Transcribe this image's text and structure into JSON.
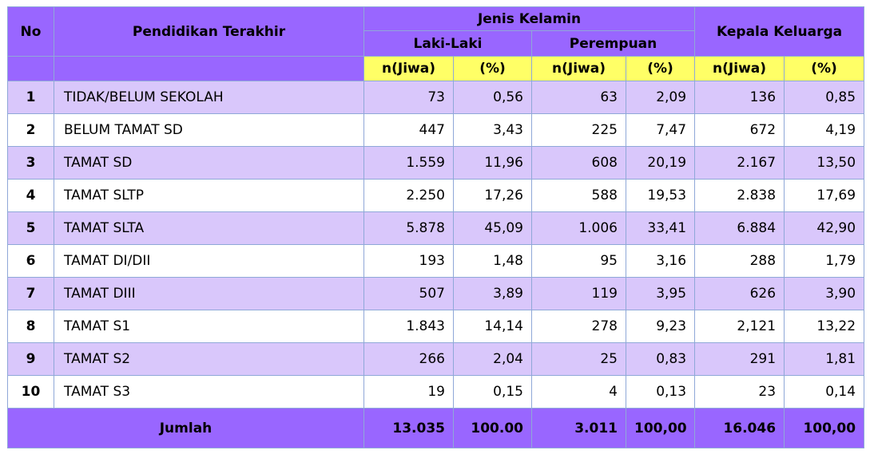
{
  "header": {
    "no": "No",
    "pendidikan": "Pendidikan Terakhir",
    "jenis_kelamin": "Jenis Kelamin",
    "kepala_keluarga": "Kepala Keluarga",
    "laki": "Laki-Laki",
    "perempuan": "Perempuan",
    "n_jiwa": "n(Jiwa)",
    "persen": "(%)"
  },
  "rows": [
    {
      "no": "1",
      "label": "TIDAK/BELUM SEKOLAH",
      "l_n": "73",
      "l_p": "0,56",
      "p_n": "63",
      "p_p": "2,09",
      "k_n": "136",
      "k_p": "0,85"
    },
    {
      "no": "2",
      "label": "BELUM TAMAT SD",
      "l_n": "447",
      "l_p": "3,43",
      "p_n": "225",
      "p_p": "7,47",
      "k_n": "672",
      "k_p": "4,19"
    },
    {
      "no": "3",
      "label": "TAMAT SD",
      "l_n": "1.559",
      "l_p": "11,96",
      "p_n": "608",
      "p_p": "20,19",
      "k_n": "2.167",
      "k_p": "13,50"
    },
    {
      "no": "4",
      "label": "TAMAT SLTP",
      "l_n": "2.250",
      "l_p": "17,26",
      "p_n": "588",
      "p_p": "19,53",
      "k_n": "2.838",
      "k_p": "17,69"
    },
    {
      "no": "5",
      "label": "TAMAT SLTA",
      "l_n": "5.878",
      "l_p": "45,09",
      "p_n": "1.006",
      "p_p": "33,41",
      "k_n": "6.884",
      "k_p": "42,90"
    },
    {
      "no": "6",
      "label": "TAMAT DI/DII",
      "l_n": "193",
      "l_p": "1,48",
      "p_n": "95",
      "p_p": "3,16",
      "k_n": "288",
      "k_p": "1,79"
    },
    {
      "no": "7",
      "label": "TAMAT DIII",
      "l_n": "507",
      "l_p": "3,89",
      "p_n": "119",
      "p_p": "3,95",
      "k_n": "626",
      "k_p": "3,90"
    },
    {
      "no": "8",
      "label": "TAMAT S1",
      "l_n": "1.843",
      "l_p": "14,14",
      "p_n": "278",
      "p_p": "9,23",
      "k_n": "2,121",
      "k_p": "13,22"
    },
    {
      "no": "9",
      "label": "TAMAT S2",
      "l_n": "266",
      "l_p": "2,04",
      "p_n": "25",
      "p_p": "0,83",
      "k_n": "291",
      "k_p": "1,81"
    },
    {
      "no": "10",
      "label": "TAMAT S3",
      "l_n": "19",
      "l_p": "0,15",
      "p_n": "4",
      "p_p": "0,13",
      "k_n": "23",
      "k_p": "0,14"
    }
  ],
  "footer": {
    "label": "Jumlah",
    "l_n": "13.035",
    "l_p": "100.00",
    "p_n": "3.011",
    "p_p": "100,00",
    "k_n": "16.046",
    "k_p": "100,00"
  }
}
